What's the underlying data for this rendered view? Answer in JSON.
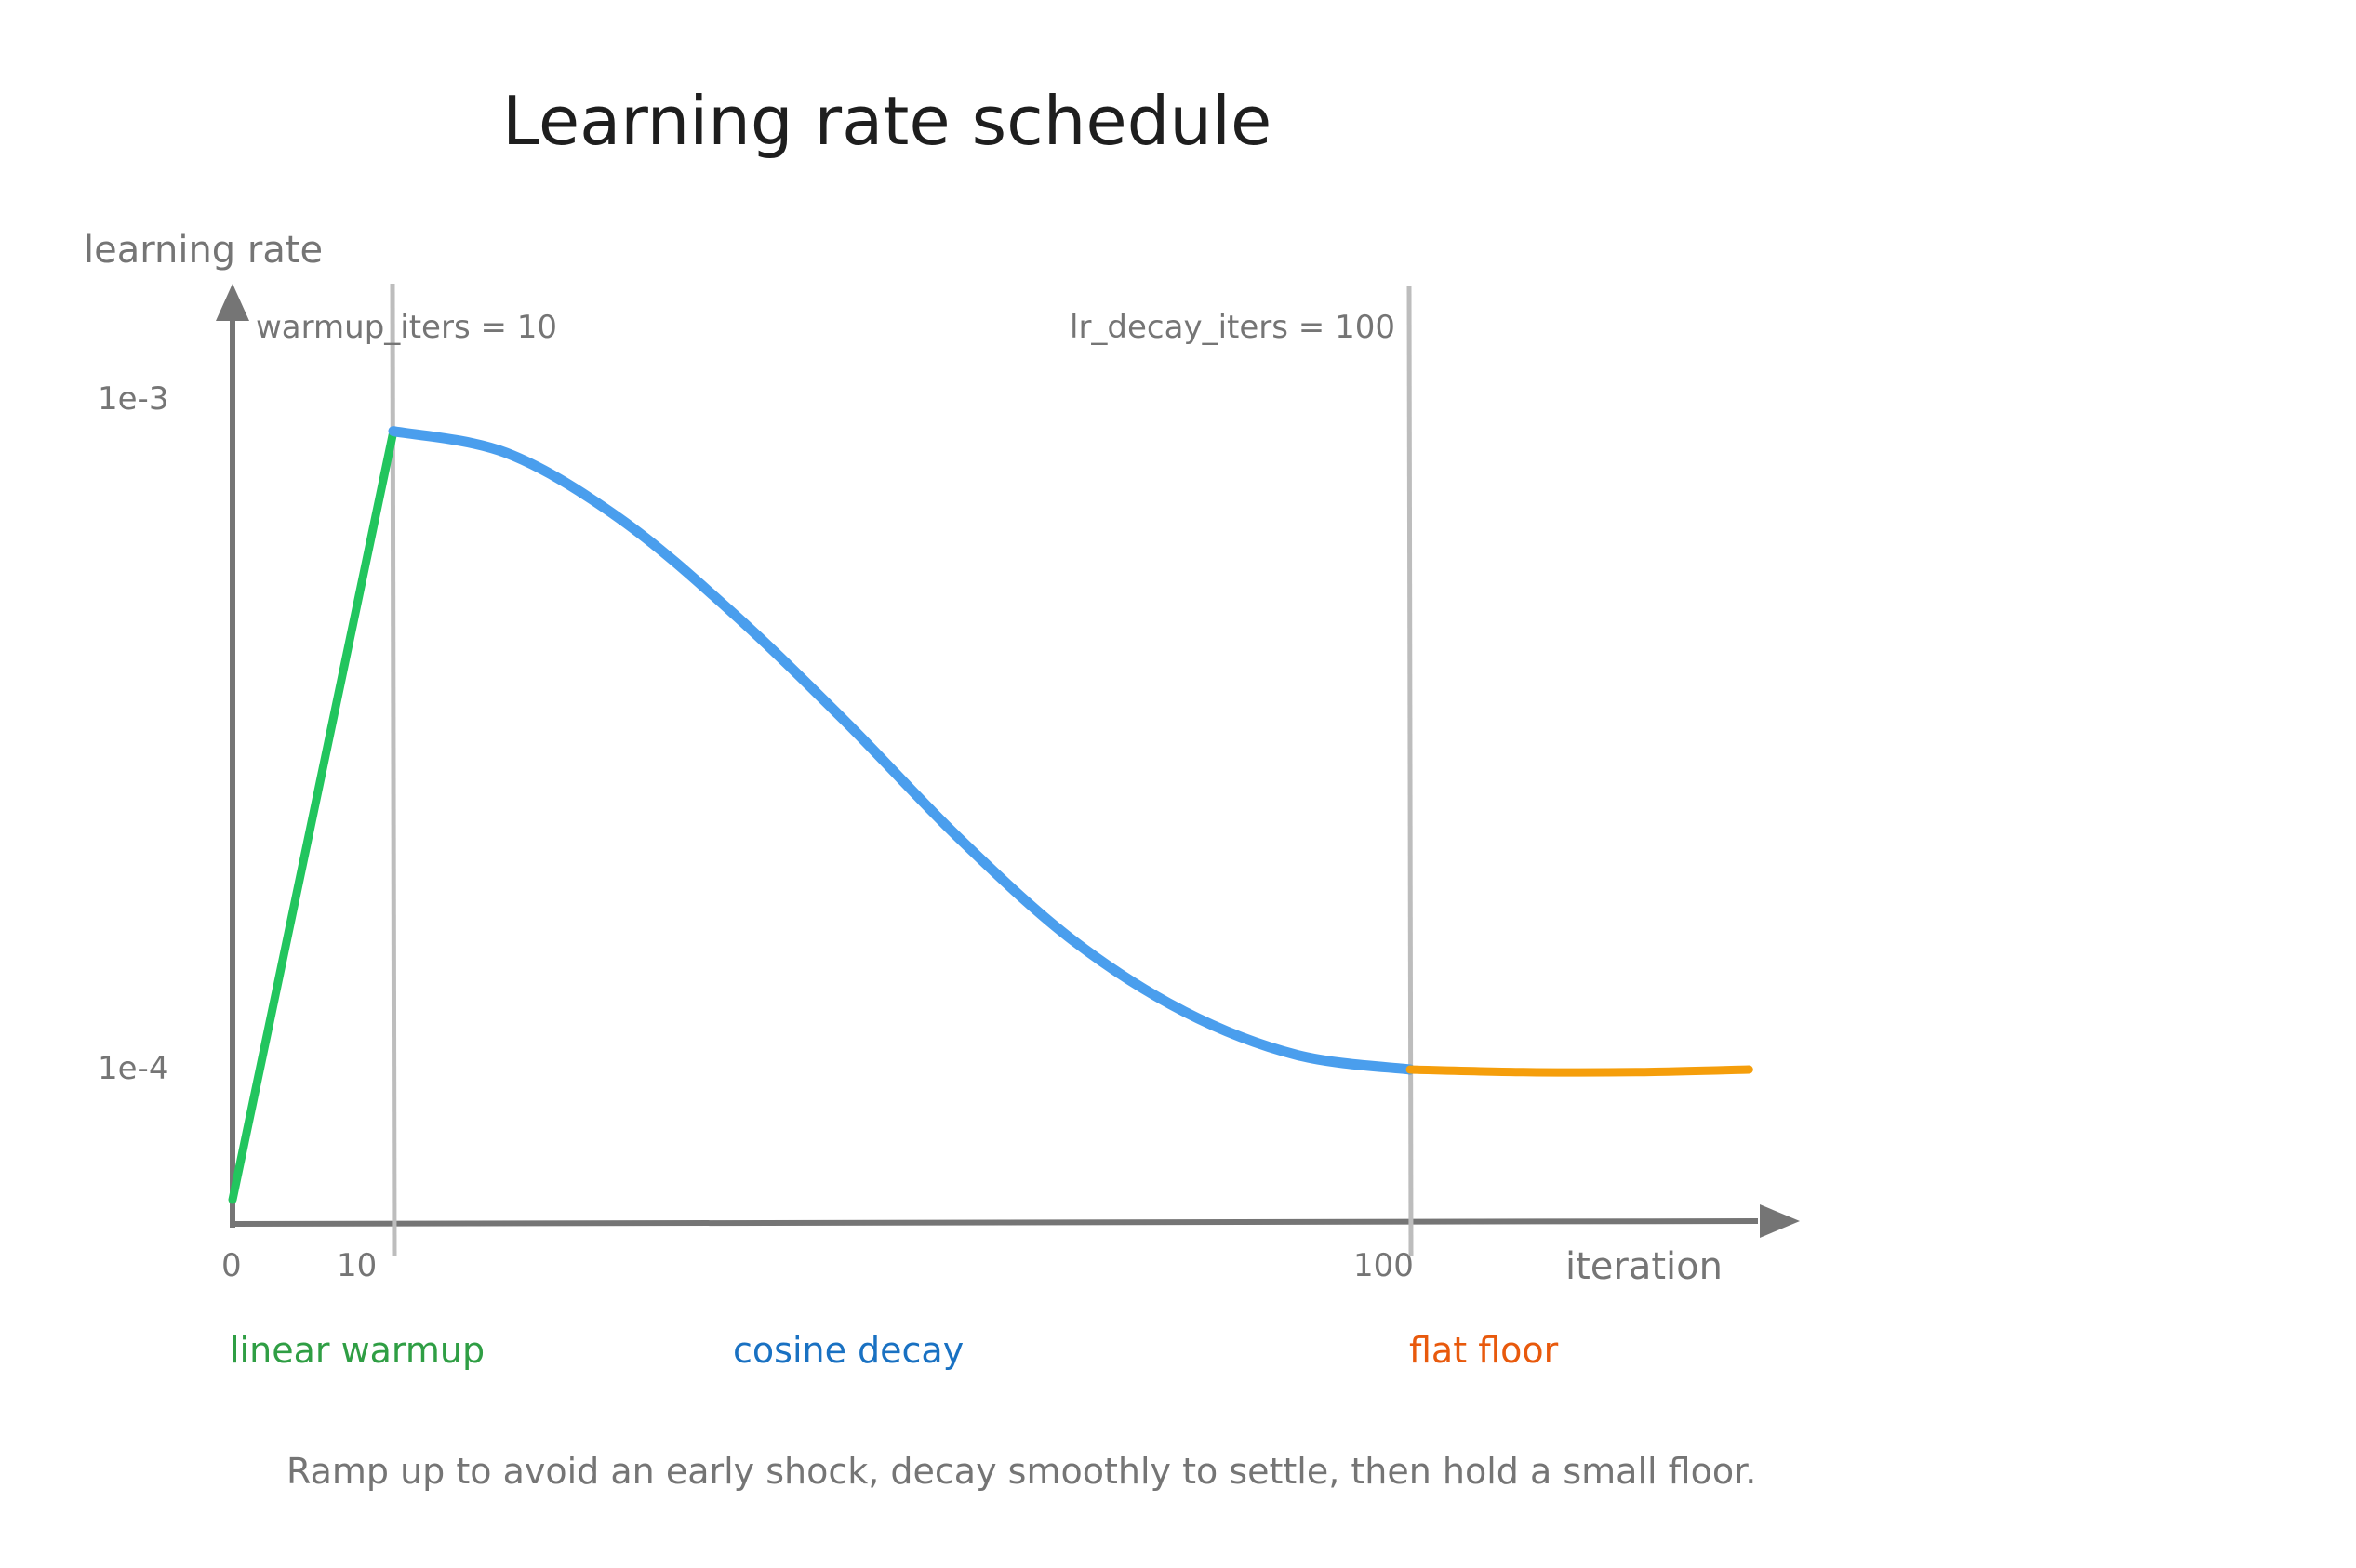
{
  "title": "Learning rate schedule",
  "axes": {
    "y_label": "learning rate",
    "x_label": "iteration",
    "y_ticks": [
      {
        "label": "1e-3",
        "value": 0.001
      },
      {
        "label": "1e-4",
        "value": 0.0001
      }
    ],
    "x_ticks": [
      {
        "label": "0",
        "value": 0
      },
      {
        "label": "10",
        "value": 10
      },
      {
        "label": "100",
        "value": 100
      }
    ]
  },
  "markers": [
    {
      "label": "warmup_iters = 10",
      "x": 10
    },
    {
      "label": "lr_decay_iters = 100",
      "x": 100
    }
  ],
  "phases": [
    {
      "label": "linear warmup",
      "color": "#2f9e44"
    },
    {
      "label": "cosine decay",
      "color": "#1971c2"
    },
    {
      "label": "flat floor",
      "color": "#e8590c"
    }
  ],
  "chart_data": {
    "type": "line",
    "xlabel": "iteration",
    "ylabel": "learning rate",
    "series": [
      {
        "name": "linear warmup",
        "color": "#22c55e",
        "x": [
          0,
          10
        ],
        "y": [
          0.0,
          0.00098
        ]
      },
      {
        "name": "cosine decay",
        "color": "#4a9eed",
        "x": [
          10,
          20,
          30,
          40,
          50,
          60,
          70,
          80,
          90,
          100
        ],
        "y": [
          0.00098,
          0.00095,
          0.00086,
          0.00073,
          0.00058,
          0.00042,
          0.00028,
          0.00018,
          0.00012,
          0.0001
        ]
      },
      {
        "name": "flat floor",
        "color": "#f59e0b",
        "x": [
          100,
          110,
          120,
          130
        ],
        "y": [
          0.0001,
          9.8e-05,
          9.8e-05,
          0.0001
        ]
      }
    ]
  },
  "caption": "Ramp up to avoid an early shock, decay smoothly to settle, then hold a small floor."
}
